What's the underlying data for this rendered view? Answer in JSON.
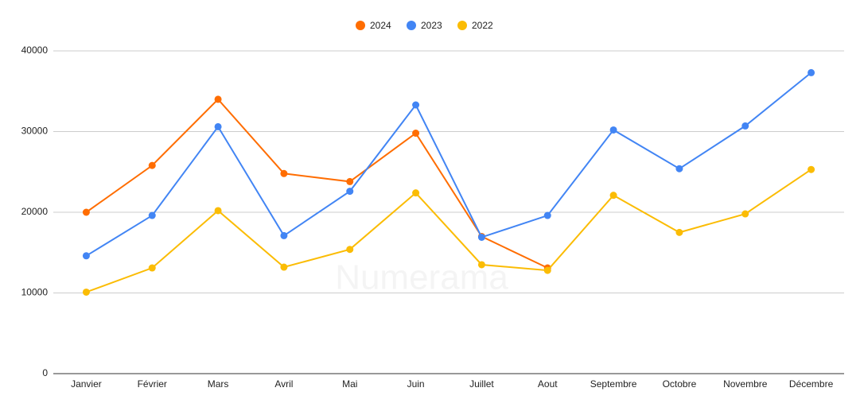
{
  "chart_data": {
    "type": "line",
    "watermark": "Numerama",
    "categories": [
      "Janvier",
      "Février",
      "Mars",
      "Avril",
      "Mai",
      "Juin",
      "Juillet",
      "Aout",
      "Septembre",
      "Octobre",
      "Novembre",
      "Décembre"
    ],
    "series": [
      {
        "name": "2024",
        "color": "#ff6d01",
        "values": [
          20000,
          25800,
          34000,
          24800,
          23800,
          29800,
          17000,
          13100,
          null,
          null,
          null,
          null
        ]
      },
      {
        "name": "2023",
        "color": "#4285f4",
        "values": [
          14600,
          19600,
          30600,
          17100,
          22600,
          33300,
          16900,
          19600,
          30200,
          25400,
          30700,
          37300
        ]
      },
      {
        "name": "2022",
        "color": "#fbbc04",
        "values": [
          10100,
          13100,
          20200,
          13200,
          15400,
          22400,
          13500,
          12800,
          22100,
          17500,
          19800,
          25300
        ]
      }
    ],
    "ylim": [
      0,
      40000
    ],
    "yticks": [
      0,
      10000,
      20000,
      30000,
      40000
    ],
    "grid": true,
    "legend": "top"
  }
}
